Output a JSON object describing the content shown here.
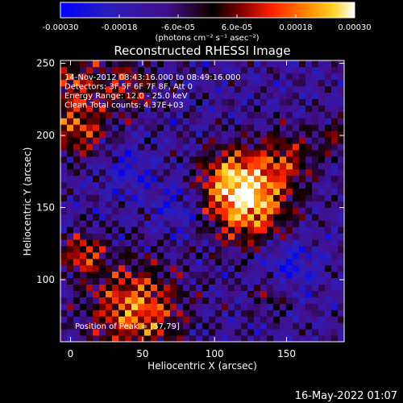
{
  "chart_data": {
    "type": "heatmap",
    "title": "Reconstructed RHESSI Image",
    "xlabel": "Heliocentric X (arcsec)",
    "ylabel": "Heliocentric Y (arcsec)",
    "xlim": [
      -7,
      190
    ],
    "ylim": [
      57,
      252
    ],
    "x_ticks": [
      0,
      50,
      100,
      150
    ],
    "y_ticks": [
      100,
      150,
      200,
      250
    ],
    "colorbar": {
      "min": -0.0003,
      "max": 0.0003,
      "ticks": [
        {
          "value": -0.0003,
          "label": "-0.00030"
        },
        {
          "value": -0.00018,
          "label": "-0.00018"
        },
        {
          "value": -6e-05,
          "label": "-6.0e-05"
        },
        {
          "value": 6e-05,
          "label": "6.0e-05"
        },
        {
          "value": 0.00018,
          "label": "0.00018"
        },
        {
          "value": 0.0003,
          "label": "0.00030"
        }
      ],
      "unit_label": "(photons cm⁻² s⁻¹ asec⁻²)"
    },
    "annotations": [
      "14-Nov-2012 08:43:16.000 to 08:49:16.000",
      "Detectors: 3F 5F 6F 7F 8F, Att 0",
      "Energy Range: 12.0 - 25.0 keV",
      "Clean    Total counts: 4.37E+03"
    ],
    "peak_label": "Position of Peak = [57,79]",
    "sources": [
      {
        "x": 125,
        "y": 152,
        "sigma": 20,
        "amp": 0.0003
      },
      {
        "x": 112,
        "y": 170,
        "sigma": 16,
        "amp": 0.00022
      },
      {
        "x": 150,
        "y": 185,
        "sigma": 14,
        "amp": 0.00016
      },
      {
        "x": 45,
        "y": 80,
        "sigma": 22,
        "amp": 0.00028
      },
      {
        "x": 8,
        "y": 118,
        "sigma": 10,
        "amp": 0.00022
      },
      {
        "x": 5,
        "y": 205,
        "sigma": 14,
        "amp": 0.00022
      },
      {
        "x": 40,
        "y": 235,
        "sigma": 14,
        "amp": 0.00016
      },
      {
        "x": 0,
        "y": 240,
        "sigma": 14,
        "amp": 0.00018
      },
      {
        "x": 140,
        "y": 90,
        "sigma": 10,
        "amp": 0.00012
      },
      {
        "x": 185,
        "y": 200,
        "sigma": 10,
        "amp": 0.00012
      },
      {
        "x": 75,
        "y": 150,
        "sigma": 12,
        "amp": -0.0001
      },
      {
        "x": 150,
        "y": 110,
        "sigma": 14,
        "amp": -0.00014
      },
      {
        "x": 40,
        "y": 175,
        "sigma": 12,
        "amp": -0.0001
      }
    ]
  },
  "footer": {
    "timestamp": "16-May-2022 01:07"
  }
}
